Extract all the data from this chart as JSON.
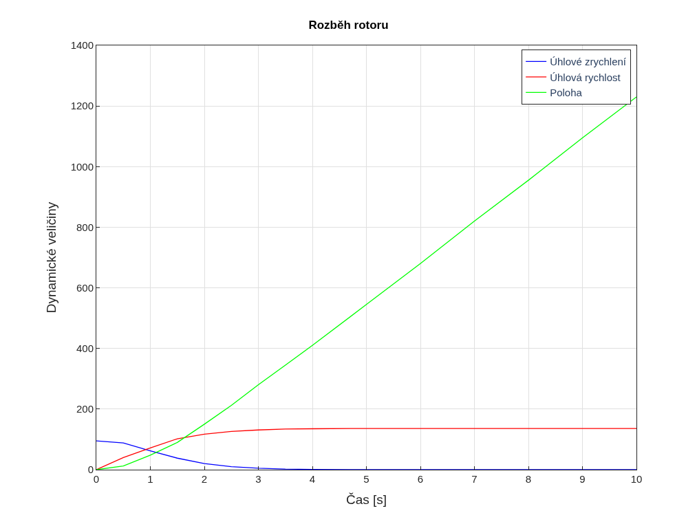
{
  "chart_data": {
    "type": "line",
    "title": "Rozběh rotoru",
    "xlabel": "Čas [s]",
    "ylabel": "Dynamické veličiny",
    "x": [
      0,
      0.5,
      1,
      1.5,
      2,
      2.5,
      3,
      3.5,
      4,
      5,
      6,
      7,
      8,
      9,
      10
    ],
    "series": [
      {
        "name": "Úhlové zrychlení",
        "color": "#0000ff",
        "values": [
          95,
          88,
          62,
          38,
          20,
          10,
          5,
          2,
          1,
          0,
          0,
          0,
          0,
          0,
          0
        ]
      },
      {
        "name": "Úhlová rychlost",
        "color": "#ff0000",
        "values": [
          0,
          40,
          72,
          102,
          117,
          126,
          131,
          134,
          135,
          136,
          136,
          136,
          136,
          136,
          136
        ]
      },
      {
        "name": "Poloha",
        "color": "#00ff00",
        "values": [
          0,
          12,
          48,
          90,
          150,
          212,
          280,
          345,
          410,
          545,
          680,
          820,
          955,
          1095,
          1230
        ]
      }
    ],
    "xlim": [
      0,
      10
    ],
    "xticks": [
      0,
      1,
      2,
      3,
      4,
      5,
      6,
      7,
      8,
      9,
      10
    ],
    "ylim": [
      0,
      1400
    ],
    "yticks": [
      0,
      200,
      400,
      600,
      800,
      1000,
      1200,
      1400
    ],
    "grid": true,
    "legend": "top right",
    "marker": "none",
    "line_style": "solid"
  }
}
